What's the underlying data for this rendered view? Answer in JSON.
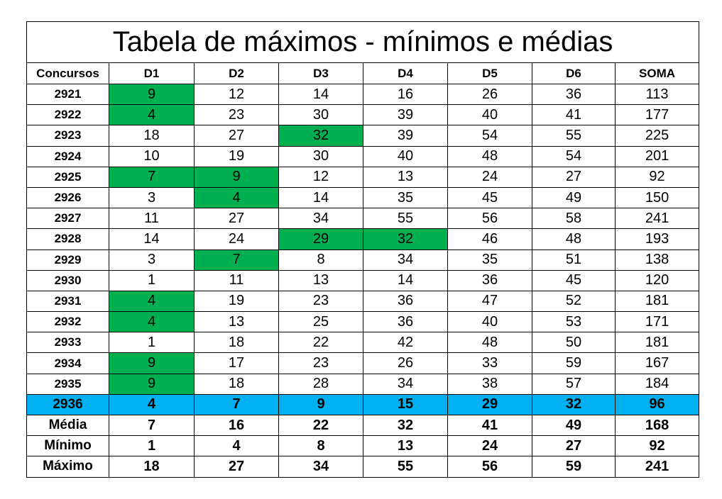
{
  "title": "Tabela de máximos - mínimos e médias",
  "header": [
    "Concursos",
    "D1",
    "D2",
    "D3",
    "D4",
    "D5",
    "D6",
    "SOMA"
  ],
  "highlight_color": "#00b050",
  "current_color": "#00b0f0",
  "rows": [
    {
      "cells": [
        2921,
        9,
        12,
        14,
        16,
        26,
        36,
        113
      ],
      "highlight": [
        1
      ]
    },
    {
      "cells": [
        2922,
        4,
        23,
        30,
        39,
        40,
        41,
        177
      ],
      "highlight": [
        1
      ]
    },
    {
      "cells": [
        2923,
        18,
        27,
        32,
        39,
        54,
        55,
        225
      ],
      "highlight": [
        3
      ]
    },
    {
      "cells": [
        2924,
        10,
        19,
        30,
        40,
        48,
        54,
        201
      ],
      "highlight": []
    },
    {
      "cells": [
        2925,
        7,
        9,
        12,
        13,
        24,
        27,
        92
      ],
      "highlight": [
        1,
        2
      ]
    },
    {
      "cells": [
        2926,
        3,
        4,
        14,
        35,
        45,
        49,
        150
      ],
      "highlight": [
        2
      ]
    },
    {
      "cells": [
        2927,
        11,
        27,
        34,
        55,
        56,
        58,
        241
      ],
      "highlight": []
    },
    {
      "cells": [
        2928,
        14,
        24,
        29,
        32,
        46,
        48,
        193
      ],
      "highlight": [
        3,
        4
      ]
    },
    {
      "cells": [
        2929,
        3,
        7,
        8,
        34,
        35,
        51,
        138
      ],
      "highlight": [
        2
      ]
    },
    {
      "cells": [
        2930,
        1,
        11,
        13,
        14,
        36,
        45,
        120
      ],
      "highlight": []
    },
    {
      "cells": [
        2931,
        4,
        19,
        23,
        36,
        47,
        52,
        181
      ],
      "highlight": [
        1
      ]
    },
    {
      "cells": [
        2932,
        4,
        13,
        25,
        36,
        40,
        53,
        171
      ],
      "highlight": [
        1
      ]
    },
    {
      "cells": [
        2933,
        1,
        18,
        22,
        42,
        48,
        50,
        181
      ],
      "highlight": []
    },
    {
      "cells": [
        2934,
        9,
        17,
        23,
        26,
        33,
        59,
        167
      ],
      "highlight": [
        1
      ]
    },
    {
      "cells": [
        2935,
        9,
        18,
        28,
        34,
        38,
        57,
        184
      ],
      "highlight": [
        1
      ]
    }
  ],
  "current_row": {
    "cells": [
      2936,
      4,
      7,
      9,
      15,
      29,
      32,
      96
    ]
  },
  "summary": [
    {
      "cells": [
        "Média",
        7,
        16,
        22,
        32,
        41,
        49,
        168
      ]
    },
    {
      "cells": [
        "Mínimo",
        1,
        4,
        8,
        13,
        24,
        27,
        92
      ]
    },
    {
      "cells": [
        "Máximo",
        18,
        27,
        34,
        55,
        56,
        59,
        241
      ]
    }
  ]
}
